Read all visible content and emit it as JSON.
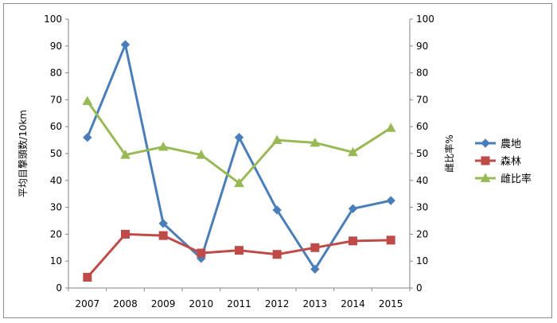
{
  "chart_data": {
    "type": "line",
    "categories": [
      "2007",
      "2008",
      "2009",
      "2010",
      "2011",
      "2012",
      "2013",
      "2014",
      "2015"
    ],
    "ylabel": "平均目撃頭数/10km",
    "y2label": "雌比率%",
    "ylim": [
      0,
      100
    ],
    "y2lim": [
      0,
      100
    ],
    "yticks": [
      "0",
      "10",
      "20",
      "30",
      "40",
      "50",
      "60",
      "70",
      "80",
      "90",
      "100"
    ],
    "y2ticks": [
      "0",
      "10",
      "20",
      "30",
      "40",
      "50",
      "60",
      "70",
      "80",
      "90",
      "100"
    ],
    "grid": false,
    "legend_position": "right",
    "series": [
      {
        "name": "農地",
        "axis": "left",
        "marker": "diamond",
        "color": "#4a7ebb",
        "values": [
          56,
          90.5,
          24,
          11,
          56,
          29,
          7,
          29.5,
          32.5
        ]
      },
      {
        "name": "森林",
        "axis": "left",
        "marker": "square",
        "color": "#be4b48",
        "values": [
          4,
          20,
          19.5,
          13,
          14,
          12.5,
          15,
          17.5,
          17.8
        ]
      },
      {
        "name": "雌比率",
        "axis": "right",
        "marker": "triangle",
        "color": "#98b954",
        "values": [
          69.5,
          49.5,
          52.5,
          49.5,
          39,
          55,
          54,
          50.5,
          59.5
        ]
      }
    ]
  }
}
